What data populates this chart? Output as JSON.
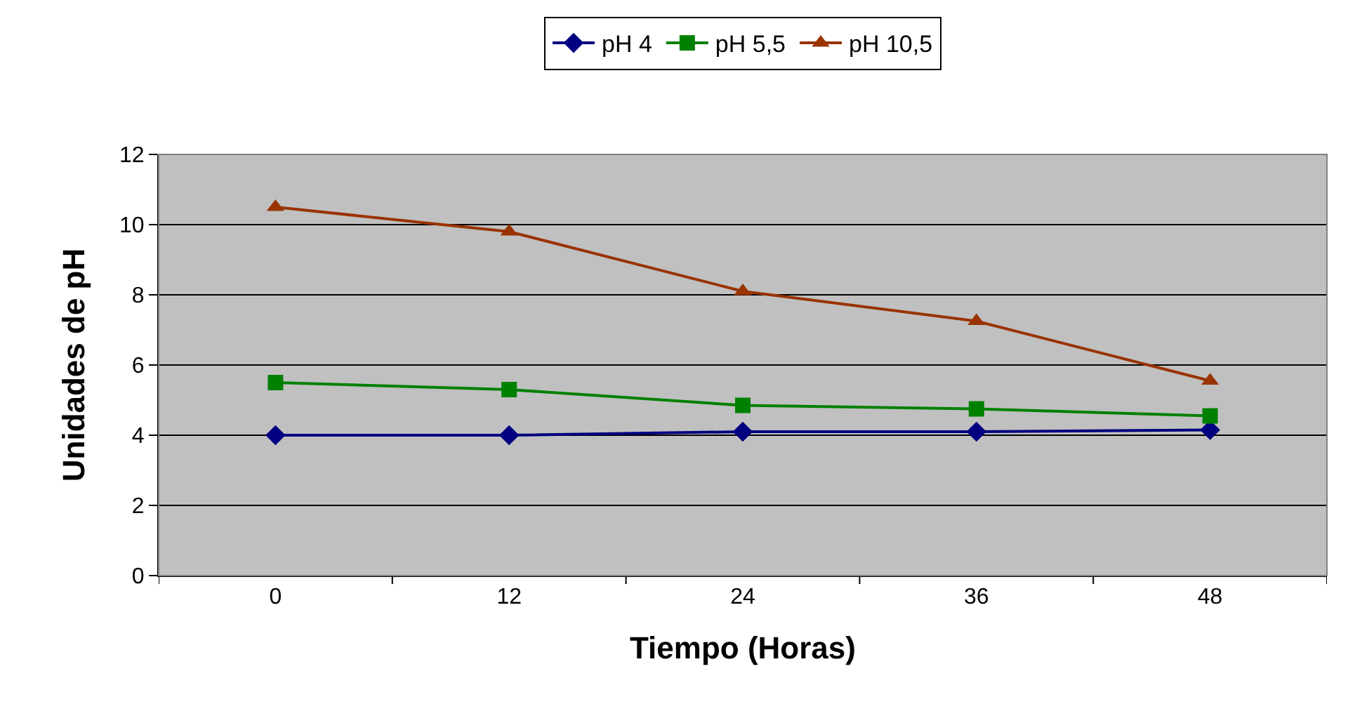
{
  "chart_data": {
    "type": "line",
    "xlabel": "Tiempo (Horas)",
    "ylabel": "Unidades de pH",
    "categories": [
      "0",
      "12",
      "24",
      "36",
      "48"
    ],
    "series": [
      {
        "name": "pH 4",
        "color": "#000080",
        "marker": "diamond",
        "values": [
          4.0,
          4.0,
          4.1,
          4.1,
          4.15
        ]
      },
      {
        "name": "pH 5,5",
        "color": "#008000",
        "marker": "square",
        "values": [
          5.5,
          5.3,
          4.85,
          4.75,
          4.55
        ]
      },
      {
        "name": "pH 10,5",
        "color": "#993300",
        "marker": "triangle",
        "values": [
          10.5,
          9.8,
          8.1,
          7.25,
          5.55
        ]
      }
    ],
    "ylim": [
      0,
      12
    ],
    "yticks": [
      0,
      2,
      4,
      6,
      8,
      10,
      12
    ],
    "grid": "y",
    "legend": "top",
    "line_style": "solid"
  }
}
